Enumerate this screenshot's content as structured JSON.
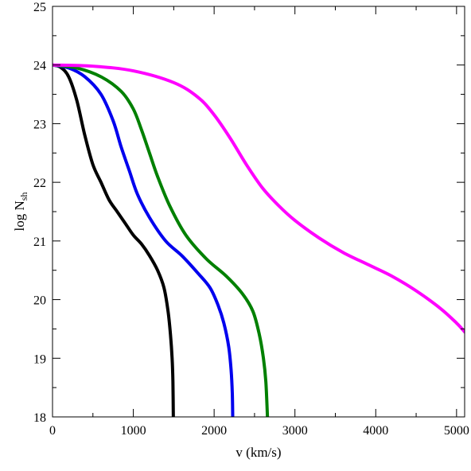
{
  "chart_data": {
    "type": "line",
    "title": "",
    "xlabel": "v (km/s)",
    "ylabel": "log N",
    "ylabel_sub": "sh",
    "xlim": [
      0,
      5100
    ],
    "ylim": [
      18,
      25
    ],
    "xticks": [
      0,
      1000,
      2000,
      3000,
      4000,
      5000
    ],
    "yticks": [
      18,
      19,
      20,
      21,
      22,
      23,
      24,
      25
    ],
    "xticks_minor": [
      500,
      1500,
      2500,
      3500,
      4500
    ],
    "yticks_minor": [
      18.5,
      19.5,
      20.5,
      21.5,
      22.5,
      23.5,
      24.5
    ],
    "grid": false,
    "legend": "none",
    "series": [
      {
        "color": "#000000",
        "points": [
          [
            0,
            24.0
          ],
          [
            100,
            23.96
          ],
          [
            200,
            23.8
          ],
          [
            300,
            23.4
          ],
          [
            400,
            22.8
          ],
          [
            500,
            22.3
          ],
          [
            600,
            22.0
          ],
          [
            700,
            21.7
          ],
          [
            800,
            21.5
          ],
          [
            900,
            21.3
          ],
          [
            1000,
            21.1
          ],
          [
            1100,
            20.95
          ],
          [
            1200,
            20.75
          ],
          [
            1300,
            20.5
          ],
          [
            1380,
            20.2
          ],
          [
            1430,
            19.8
          ],
          [
            1460,
            19.4
          ],
          [
            1480,
            19.0
          ],
          [
            1490,
            18.6
          ],
          [
            1495,
            18.0
          ]
        ]
      },
      {
        "color": "#0000ee",
        "points": [
          [
            0,
            24.0
          ],
          [
            200,
            23.95
          ],
          [
            400,
            23.8
          ],
          [
            600,
            23.5
          ],
          [
            750,
            23.05
          ],
          [
            850,
            22.6
          ],
          [
            950,
            22.2
          ],
          [
            1050,
            21.8
          ],
          [
            1200,
            21.4
          ],
          [
            1400,
            21.0
          ],
          [
            1600,
            20.75
          ],
          [
            1800,
            20.45
          ],
          [
            1950,
            20.2
          ],
          [
            2050,
            19.9
          ],
          [
            2120,
            19.6
          ],
          [
            2180,
            19.2
          ],
          [
            2210,
            18.8
          ],
          [
            2225,
            18.4
          ],
          [
            2230,
            18.0
          ]
        ]
      },
      {
        "color": "#008000",
        "points": [
          [
            0,
            24.0
          ],
          [
            300,
            23.95
          ],
          [
            600,
            23.8
          ],
          [
            850,
            23.55
          ],
          [
            1000,
            23.25
          ],
          [
            1100,
            22.9
          ],
          [
            1200,
            22.5
          ],
          [
            1300,
            22.1
          ],
          [
            1450,
            21.6
          ],
          [
            1650,
            21.1
          ],
          [
            1900,
            20.7
          ],
          [
            2150,
            20.4
          ],
          [
            2350,
            20.1
          ],
          [
            2480,
            19.8
          ],
          [
            2560,
            19.4
          ],
          [
            2610,
            19.0
          ],
          [
            2640,
            18.6
          ],
          [
            2660,
            18.0
          ]
        ]
      },
      {
        "color": "#ff00ff",
        "points": [
          [
            0,
            24.0
          ],
          [
            500,
            23.98
          ],
          [
            1000,
            23.9
          ],
          [
            1500,
            23.7
          ],
          [
            1800,
            23.45
          ],
          [
            2000,
            23.15
          ],
          [
            2200,
            22.75
          ],
          [
            2400,
            22.3
          ],
          [
            2600,
            21.9
          ],
          [
            2800,
            21.6
          ],
          [
            3000,
            21.35
          ],
          [
            3300,
            21.05
          ],
          [
            3600,
            20.8
          ],
          [
            3900,
            20.6
          ],
          [
            4200,
            20.4
          ],
          [
            4500,
            20.15
          ],
          [
            4800,
            19.85
          ],
          [
            5000,
            19.6
          ],
          [
            5100,
            19.45
          ]
        ]
      }
    ]
  }
}
